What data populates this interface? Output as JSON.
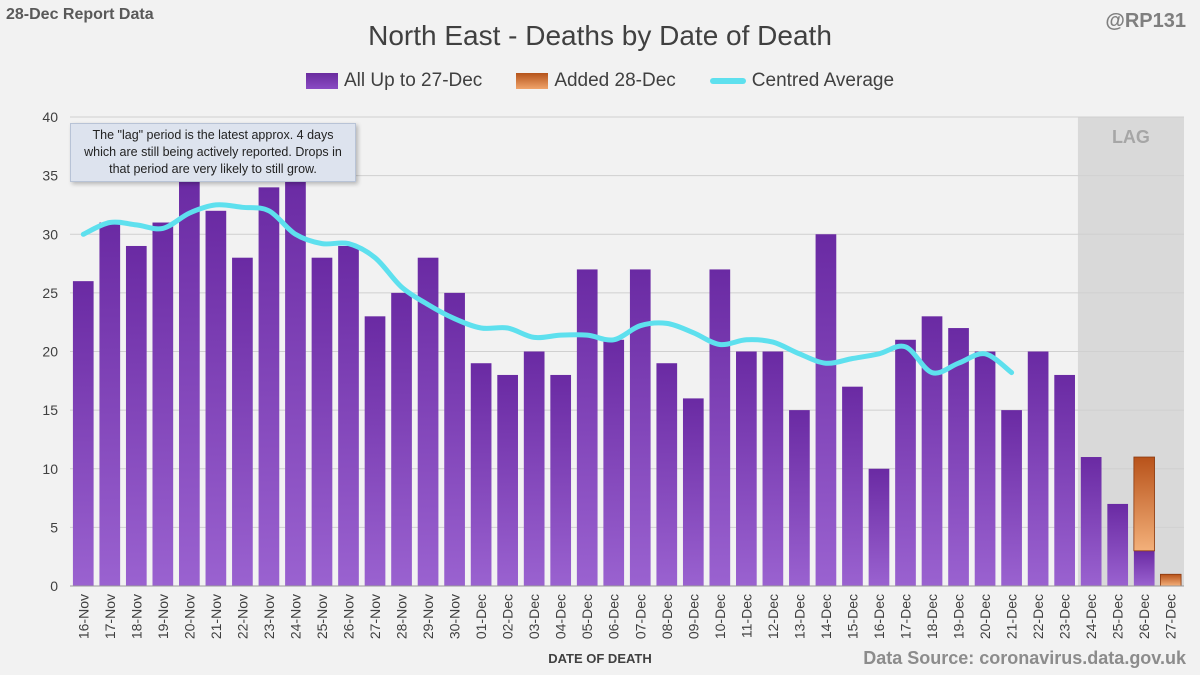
{
  "header": {
    "report_label": "28-Dec Report Data",
    "handle": "@RP131",
    "source": "Data Source: coronavirus.data.gov.uk"
  },
  "note": {
    "text": "The \"lag\" period is the latest approx. 4 days which are still being actively reported. Drops in that period are very likely to still grow."
  },
  "chart_data": {
    "type": "bar",
    "title": "North East - Deaths by Date of Death",
    "xlabel": "DATE OF DEATH",
    "ylabel": "",
    "ylim": [
      0,
      40
    ],
    "yticks": [
      0,
      5,
      10,
      15,
      20,
      25,
      30,
      35,
      40
    ],
    "grid": true,
    "legend_position": "top-center",
    "lag_label": "LAG",
    "lag_categories": [
      "24-Dec",
      "25-Dec",
      "26-Dec",
      "27-Dec"
    ],
    "categories": [
      "16-Nov",
      "17-Nov",
      "18-Nov",
      "19-Nov",
      "20-Nov",
      "21-Nov",
      "22-Nov",
      "23-Nov",
      "24-Nov",
      "25-Nov",
      "26-Nov",
      "27-Nov",
      "28-Nov",
      "29-Nov",
      "30-Nov",
      "01-Dec",
      "02-Dec",
      "03-Dec",
      "04-Dec",
      "05-Dec",
      "06-Dec",
      "07-Dec",
      "08-Dec",
      "09-Dec",
      "10-Dec",
      "11-Dec",
      "12-Dec",
      "13-Dec",
      "14-Dec",
      "15-Dec",
      "16-Dec",
      "17-Dec",
      "18-Dec",
      "19-Dec",
      "20-Dec",
      "21-Dec",
      "22-Dec",
      "23-Dec",
      "24-Dec",
      "25-Dec",
      "26-Dec",
      "27-Dec"
    ],
    "series": [
      {
        "name": "All Up to 27-Dec",
        "kind": "bar",
        "color": "#7a3bb5",
        "values": [
          26,
          31,
          29,
          31,
          35,
          32,
          28,
          34,
          35,
          28,
          29,
          23,
          25,
          28,
          25,
          19,
          18,
          20,
          18,
          27,
          21,
          27,
          19,
          16,
          27,
          20,
          20,
          15,
          30,
          17,
          10,
          21,
          23,
          22,
          20,
          15,
          20,
          18,
          11,
          7,
          3,
          0
        ]
      },
      {
        "name": "Added 28-Dec",
        "kind": "bar-stacked",
        "color": "#e8843e",
        "values": [
          0,
          0,
          0,
          0,
          0,
          0,
          0,
          0,
          0,
          0,
          0,
          0,
          0,
          0,
          0,
          0,
          0,
          0,
          0,
          0,
          0,
          0,
          0,
          0,
          0,
          0,
          0,
          0,
          0,
          0,
          0,
          0,
          0,
          0,
          0,
          0,
          0,
          0,
          0,
          0,
          8,
          1
        ]
      },
      {
        "name": "Centred Average",
        "kind": "line",
        "color": "#5ee0ee",
        "values": [
          30,
          31,
          30.8,
          30.5,
          31.8,
          32.5,
          32.3,
          32,
          30,
          29.2,
          29.2,
          28,
          25.5,
          24,
          22.8,
          22,
          22,
          21.2,
          21.4,
          21.4,
          21,
          22.2,
          22.4,
          21.6,
          20.6,
          21,
          20.8,
          19.8,
          19,
          19.4,
          19.8,
          20.4,
          18.2,
          19,
          19.8,
          18.2,
          null,
          null,
          null,
          null,
          null,
          null
        ]
      }
    ]
  }
}
